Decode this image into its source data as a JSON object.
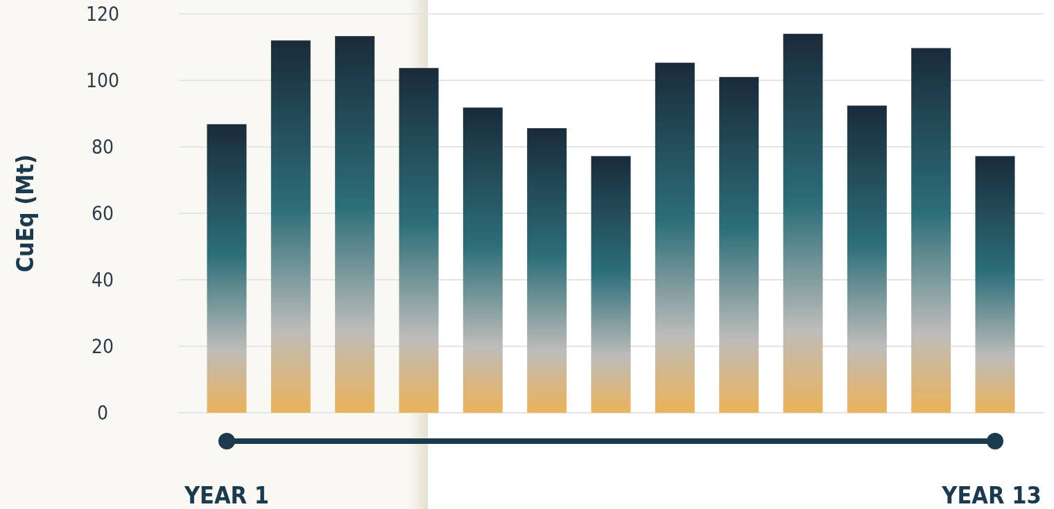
{
  "chart_data": {
    "type": "bar",
    "ylabel": "CuEq (Mt)",
    "categories": [
      "YEAR 1",
      null,
      null,
      null,
      null,
      null,
      null,
      null,
      null,
      null,
      null,
      null,
      "YEAR 13"
    ],
    "values": [
      86.8,
      112.0,
      113.3,
      103.7,
      91.8,
      85.6,
      77.2,
      105.3,
      101.0,
      114.0,
      92.4,
      109.7,
      77.2
    ],
    "color": "#1a2b3a",
    "ylim": [
      0,
      120
    ],
    "yticks": [
      0,
      20,
      40,
      60,
      80,
      100,
      120
    ],
    "grid": "y"
  }
}
